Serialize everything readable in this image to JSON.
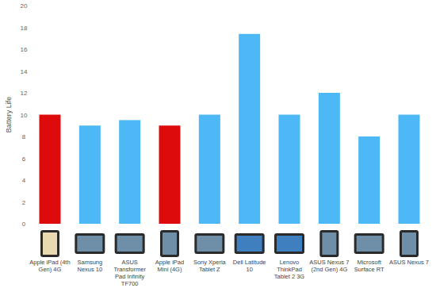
{
  "chart_data": {
    "type": "bar",
    "y_label": "Battery Life",
    "categories": [
      "Apple iPad (4th Gen) 4G",
      "Samsung Nexus 10",
      "ASUS Transformer Pad Infinity TF700",
      "Apple iPad Mini (4G)",
      "Sony Xperia Tablet Z",
      "Dell Latitude 10",
      "Lenovo ThinkPad Tablet 2 3G",
      "ASUS Nexus 7 (2nd Gen) 4G",
      "Microsoft Surface RT",
      "ASUS Nexus 7"
    ],
    "values": [
      10,
      9,
      9.5,
      9,
      10,
      17.4,
      10,
      12,
      8,
      10
    ],
    "colors": [
      "#dd0b0b",
      "#4cb8f5",
      "#4cb8f5",
      "#dd0b0b",
      "#4cb8f5",
      "#4cb8f5",
      "#4cb8f5",
      "#4cb8f5",
      "#4cb8f5",
      "#4cb8f5"
    ],
    "ylim": [
      0,
      20
    ],
    "yticks": [
      0,
      2,
      4,
      6,
      8,
      10,
      12,
      14,
      16,
      18,
      20
    ],
    "grid": false
  }
}
